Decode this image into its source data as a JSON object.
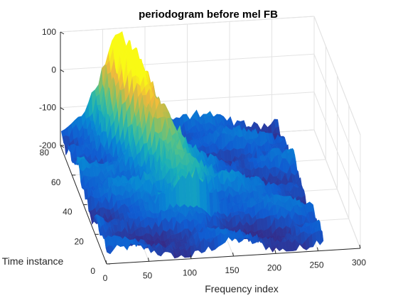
{
  "chart_data": {
    "type": "surface",
    "title": "periodogram before mel FB",
    "xlabel": "Frequency index",
    "ylabel": "Time instance",
    "zlabel": "",
    "xlim": [
      0,
      300
    ],
    "ylim": [
      0,
      80
    ],
    "zlim": [
      -200,
      100
    ],
    "xticks": [
      "0",
      "50",
      "100",
      "150",
      "200",
      "250",
      "300"
    ],
    "yticks": [
      "0",
      "20",
      "40",
      "60",
      "80"
    ],
    "zticks": [
      "-200",
      "-100",
      "0",
      "100"
    ],
    "grid": true,
    "colormap": "parula",
    "surface_extent": {
      "x": [
        1,
        257
      ],
      "y": [
        1,
        80
      ]
    },
    "baseline_level": -170,
    "ridge": {
      "description_hidden": true,
      "points": [
        {
          "x": 70,
          "y": 80,
          "z": 40
        },
        {
          "x": 80,
          "y": 64,
          "z": 20
        },
        {
          "x": 95,
          "y": 50,
          "z": -40
        },
        {
          "x": 110,
          "y": 38,
          "z": -80
        },
        {
          "x": 120,
          "y": 30,
          "z": -100
        }
      ]
    }
  }
}
